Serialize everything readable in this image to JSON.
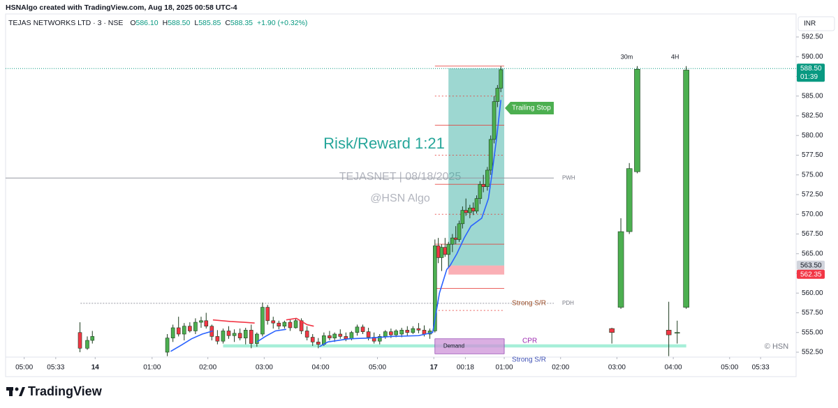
{
  "header": {
    "credit": "HSNAlgo created with TradingView.com, Aug 18, 2025 00:58 UTC-4",
    "symbol": "TEJAS NETWORKS LTD · 3 · NSE",
    "ohlc": [
      {
        "key": "O",
        "value": "586.10"
      },
      {
        "key": "H",
        "value": "588.50"
      },
      {
        "key": "L",
        "value": "585.85"
      },
      {
        "key": "C",
        "value": "588.35"
      }
    ],
    "change": "+1.90 (+0.32%)",
    "currency": "INR"
  },
  "footer": {
    "brand": "TradingView"
  },
  "chart_data": {
    "type": "candlestick",
    "xlim": [
      -0.33,
      13.7
    ],
    "ylim": [
      551.88,
      593.65
    ],
    "xticks": [
      {
        "value": 0,
        "label": "05:00"
      },
      {
        "value": 0.56,
        "label": "05:33"
      },
      {
        "value": 1.26,
        "label": "14"
      },
      {
        "value": 2.27,
        "label": "01:00"
      },
      {
        "value": 3.26,
        "label": "02:00"
      },
      {
        "value": 4.26,
        "label": "03:00"
      },
      {
        "value": 5.26,
        "label": "04:00"
      },
      {
        "value": 6.27,
        "label": "05:00"
      },
      {
        "value": 7.27,
        "label": "17"
      },
      {
        "value": 7.83,
        "label": "00:18"
      },
      {
        "value": 8.52,
        "label": "01:00"
      },
      {
        "value": 9.52,
        "label": "02:00"
      },
      {
        "value": 10.52,
        "label": "03:00"
      },
      {
        "value": 11.52,
        "label": "04:00"
      },
      {
        "value": 12.52,
        "label": "05:00"
      },
      {
        "value": 13.07,
        "label": "05:33"
      }
    ],
    "yticks": [
      {
        "value": 592.5,
        "label": "592.50"
      },
      {
        "value": 590,
        "label": "590.00"
      },
      {
        "value": 587.5,
        "label": "587.50"
      },
      {
        "value": 585,
        "label": "585.00"
      },
      {
        "value": 582.5,
        "label": "582.50"
      },
      {
        "value": 580,
        "label": "580.00"
      },
      {
        "value": 577.5,
        "label": "577.50"
      },
      {
        "value": 575,
        "label": "575.00"
      },
      {
        "value": 572.5,
        "label": "572.50"
      },
      {
        "value": 570,
        "label": "570.00"
      },
      {
        "value": 567.5,
        "label": "567.50"
      },
      {
        "value": 565,
        "label": "565.00"
      },
      {
        "value": 562.5,
        "label": "562.50"
      },
      {
        "value": 560,
        "label": "560.00"
      },
      {
        "value": 557.5,
        "label": "557.50"
      },
      {
        "value": 555,
        "label": "555.00"
      },
      {
        "value": 552.5,
        "label": "552.50"
      }
    ],
    "up_color": "#4caf50",
    "down_color": "#f23645",
    "candles": {
      "x": [
        0.99,
        1.12,
        1.21,
        2.54,
        2.64,
        2.74,
        2.84,
        2.94,
        3.04,
        3.14,
        3.23,
        3.33,
        3.43,
        3.53,
        3.63,
        3.73,
        3.83,
        3.93,
        4.03,
        4.13,
        4.23,
        4.32,
        4.42,
        4.52,
        4.62,
        4.72,
        4.82,
        4.92,
        5.02,
        5.12,
        5.22,
        5.32,
        5.42,
        5.51,
        5.61,
        5.71,
        5.81,
        5.91,
        6.01,
        6.11,
        6.21,
        6.31,
        6.41,
        6.51,
        6.6,
        6.7,
        6.8,
        6.9,
        7.0,
        7.1,
        7.2,
        7.29,
        7.35,
        7.41,
        7.47,
        7.53,
        7.6,
        7.66,
        7.72,
        7.78,
        7.84,
        7.91,
        7.97,
        8.03,
        8.09,
        8.15,
        8.22,
        8.28,
        8.34,
        8.4,
        8.46
      ],
      "open": [
        555,
        553,
        554,
        552.5,
        554.3,
        555.6,
        554.8,
        555.8,
        555.2,
        556.3,
        556.5,
        555.8,
        554.5,
        553.9,
        555.2,
        554.6,
        554.9,
        554.3,
        555.3,
        553.6,
        554.8,
        558.2,
        556.5,
        556.2,
        555.8,
        556.3,
        555.6,
        556.5,
        555.2,
        554.4,
        553.8,
        553.5,
        554.6,
        554.3,
        554.8,
        554.5,
        554.2,
        555,
        555.7,
        555.1,
        554.4,
        553.9,
        554.5,
        555.1,
        554.7,
        554.8,
        555.3,
        555,
        555.5,
        555.3,
        554.8,
        555.2,
        566,
        564.5,
        565.8,
        564.9,
        566.2,
        567,
        566.8,
        568.8,
        570.5,
        570.2,
        570.8,
        570.4,
        572,
        573.8,
        573.5,
        575.6,
        579.5,
        584.3,
        586
      ],
      "high": [
        556.3,
        554.5,
        555.2,
        554.8,
        556,
        557,
        556.2,
        556.3,
        556.8,
        557,
        557.5,
        556,
        555.3,
        555.5,
        555.8,
        555.4,
        555.5,
        555.6,
        556,
        555,
        558.8,
        558.5,
        557,
        556.5,
        556.5,
        556.6,
        556.8,
        556.8,
        555.8,
        554.8,
        554.3,
        555,
        555.2,
        555,
        555.4,
        555,
        555.2,
        556,
        556,
        555.6,
        555,
        554.8,
        555.3,
        555.5,
        555.4,
        555.6,
        555.8,
        555.8,
        556.2,
        555.9,
        555.5,
        566.8,
        567,
        566.2,
        567,
        566.5,
        567.5,
        568.5,
        569.2,
        571,
        572,
        571.2,
        571.5,
        572.4,
        574.2,
        575,
        576,
        580,
        585,
        586.4,
        588.8
      ],
      "low": [
        552.5,
        552.8,
        553.6,
        552,
        553.8,
        554.5,
        554,
        555,
        554.8,
        555.6,
        555.5,
        554,
        553.5,
        553.6,
        554.2,
        553.8,
        554,
        553.5,
        553,
        553.2,
        554.5,
        556,
        555.5,
        555.4,
        555.5,
        555.2,
        555.5,
        554.8,
        554,
        553.3,
        553,
        553.3,
        554,
        553.8,
        554.2,
        553.9,
        554,
        554.6,
        554.8,
        554,
        553.6,
        553.5,
        554.2,
        554.3,
        554.4,
        554.4,
        554.6,
        554.8,
        554.9,
        554.5,
        554.2,
        555,
        563.8,
        562.8,
        564.6,
        563.2,
        565.2,
        566.2,
        566.5,
        568.2,
        569.8,
        569.5,
        569.9,
        570.1,
        571.3,
        572.8,
        573,
        575,
        579,
        583.6,
        585.5
      ],
      "close": [
        553,
        554,
        554.5,
        554.3,
        555.6,
        554.8,
        555.8,
        555.2,
        556.3,
        556.5,
        555.8,
        554.5,
        553.9,
        555.2,
        554.6,
        554.9,
        554.3,
        555.3,
        553.6,
        554.8,
        558.2,
        556.5,
        556.2,
        555.8,
        556.3,
        555.6,
        556.5,
        555.2,
        554.4,
        553.8,
        553.5,
        554.6,
        554.3,
        554.8,
        554.5,
        554.2,
        555,
        555.7,
        555.1,
        554.4,
        553.9,
        554.5,
        555.1,
        554.7,
        555.2,
        555.3,
        555,
        555.5,
        555.3,
        554.8,
        555.2,
        566,
        564.5,
        565.8,
        564.9,
        566.2,
        567,
        566.8,
        568.8,
        570.5,
        570.2,
        570.8,
        570.4,
        572,
        573.8,
        573.5,
        575.6,
        579.5,
        584.3,
        586,
        588.35
      ]
    },
    "side_candles": [
      {
        "label": "30m",
        "x": [
          10.59,
          10.74,
          10.88
        ],
        "open": [
          558.2,
          567.8,
          575.4
        ],
        "high": [
          569.5,
          576.5,
          588.8
        ],
        "low": [
          558,
          567.5,
          575.2
        ],
        "close": [
          567.8,
          575.8,
          588.4
        ]
      },
      {
        "label": "4H",
        "x": [
          11.75
        ],
        "open": [
          558.2
        ],
        "high": [
          588.8
        ],
        "low": [
          558
        ],
        "close": [
          588.3
        ]
      },
      {
        "x": [
          10.43,
          11.44,
          11.59
        ],
        "open": [
          555.5,
          555.3,
          555
        ],
        "high": [
          555.6,
          558.9,
          556.5
        ],
        "low": [
          553.6,
          552,
          553.6
        ],
        "close": [
          555,
          554.7,
          555
        ]
      }
    ],
    "line_x": [
      2.6,
      2.79,
      2.97,
      3.16,
      3.35,
      3.66,
      3.9,
      4.09,
      4.13,
      4.28,
      4.46,
      4.65,
      4.83,
      5.02,
      5.14,
      5.24,
      5.39,
      5.76,
      6.13,
      6.51,
      7.0,
      7.25,
      7.37,
      7.5,
      7.56,
      7.68,
      7.81,
      7.93,
      8.12,
      8.24,
      8.3,
      8.39,
      8.46
    ],
    "lines": [
      {
        "color": "#2962ff",
        "values": [
          552.6,
          553.4,
          554.2,
          554.8,
          555.2,
          null,
          null,
          null,
          553.8,
          554.5,
          555.2,
          555.4,
          null,
          null,
          null,
          553.2,
          553.8,
          554.2,
          554.3,
          554.5,
          554.6,
          555,
          560,
          563,
          563.5,
          565,
          567,
          568.5,
          569.5,
          572,
          575,
          580,
          584.5
        ]
      },
      {
        "color": "#f23645",
        "values": [
          null,
          null,
          null,
          null,
          556.6,
          556.4,
          556.3,
          556.2,
          null,
          null,
          null,
          556.6,
          556.8,
          556,
          555.8,
          null,
          null,
          null,
          null,
          null,
          null,
          null,
          null,
          null,
          null,
          null,
          null,
          null,
          null,
          null,
          null,
          null,
          null
        ]
      }
    ],
    "price_tags": [
      {
        "value": 588.5,
        "label": "588.50",
        "sub": "01:39",
        "color": "#089981"
      },
      {
        "value": 563.5,
        "label": "563.50",
        "color": "#d1d4dc"
      },
      {
        "value": 562.35,
        "label": "562.35",
        "color": "#f23645"
      }
    ],
    "rr_zone": {
      "x": [
        7.53,
        8.52
      ]
    },
    "rr_lines": {
      "x": [
        7.29,
        8.52
      ],
      "solid": [
        588.8,
        581.3,
        573.8,
        566.2,
        560.6
      ],
      "dotted": [
        585,
        577.5,
        570,
        557.8
      ]
    },
    "levels": [
      {
        "label": "PWH",
        "value": 574.6,
        "x": [
          -0.33,
          9.4
        ],
        "style": "solid"
      },
      {
        "label": "PDH",
        "value": 558.7,
        "x": [
          1.0,
          9.4
        ],
        "style": "dashed"
      }
    ],
    "demand": {
      "label": "Demand",
      "x": [
        7.29,
        8.52
      ],
      "top": 554.2,
      "bottom": 552.3
    },
    "cpr": {
      "label": "CPR",
      "x": [
        3.53,
        11.75
      ],
      "top": 553.5,
      "bottom": 553.1
    },
    "annotations": {
      "strong_sr_top": "Strong S/R",
      "strong_sr_bottom": "Strong S/R",
      "trailing_stop": "Trailing Stop",
      "copyright": "© HSN"
    },
    "watermarks": {
      "rr": "Risk/Reward 1:21",
      "ticker": "TEJASNET | 08/18/2025",
      "author": "@HSN Algo"
    }
  }
}
